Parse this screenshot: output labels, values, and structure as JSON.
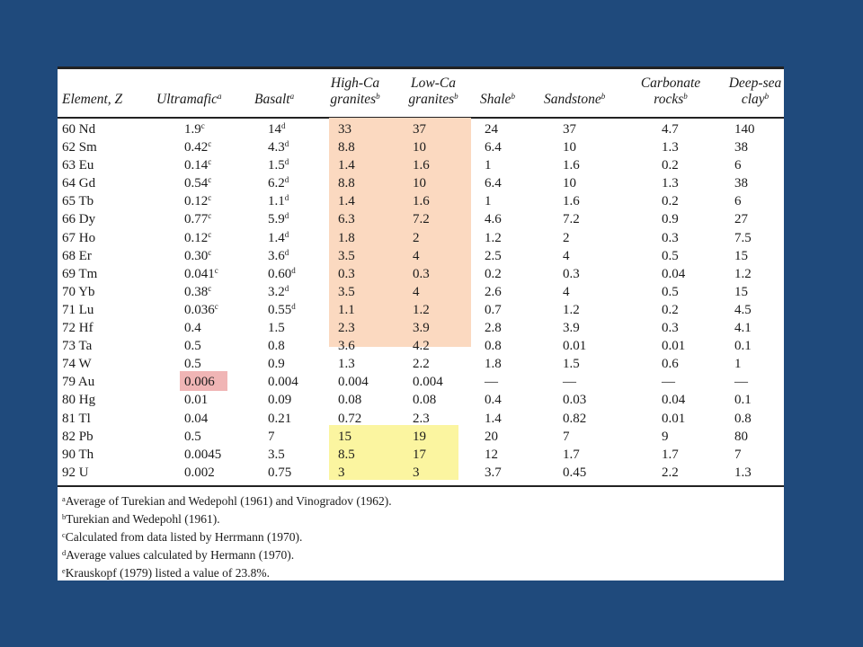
{
  "headers": {
    "element": {
      "text": "Element, Z",
      "sup": ""
    },
    "ultramafic": {
      "text": "Ultramafic",
      "sup": "a"
    },
    "basalt": {
      "text": "Basalt",
      "sup": "a"
    },
    "high_ca_1": {
      "text": "High-Ca",
      "sup": ""
    },
    "high_ca_2": {
      "text": "granites",
      "sup": "b"
    },
    "low_ca_1": {
      "text": "Low-Ca",
      "sup": ""
    },
    "low_ca_2": {
      "text": "granites",
      "sup": "b"
    },
    "shale": {
      "text": "Shale",
      "sup": "b"
    },
    "sandstone": {
      "text": "Sandstone",
      "sup": "b"
    },
    "carbonate_1": {
      "text": "Carbonate",
      "sup": ""
    },
    "carbonate_2": {
      "text": "rocks",
      "sup": "b"
    },
    "deepsea_1": {
      "text": "Deep-sea",
      "sup": ""
    },
    "deepsea_2": {
      "text": "clay",
      "sup": "b"
    }
  },
  "rows": [
    {
      "el": "60 Nd",
      "um": "1.9",
      "um_s": "c",
      "ba": "14",
      "ba_s": "d",
      "hc": "33",
      "lc": "37",
      "sh": "24",
      "ss": "37",
      "cr": "4.7",
      "dc": "140"
    },
    {
      "el": "62 Sm",
      "um": "0.42",
      "um_s": "c",
      "ba": "4.3",
      "ba_s": "d",
      "hc": "8.8",
      "lc": "10",
      "sh": "6.4",
      "ss": "10",
      "cr": "1.3",
      "dc": "38"
    },
    {
      "el": "63 Eu",
      "um": "0.14",
      "um_s": "c",
      "ba": "1.5",
      "ba_s": "d",
      "hc": "1.4",
      "lc": "1.6",
      "sh": "1",
      "ss": "1.6",
      "cr": "0.2",
      "dc": "6"
    },
    {
      "el": "64 Gd",
      "um": "0.54",
      "um_s": "c",
      "ba": "6.2",
      "ba_s": "d",
      "hc": "8.8",
      "lc": "10",
      "sh": "6.4",
      "ss": "10",
      "cr": "1.3",
      "dc": "38"
    },
    {
      "el": "65 Tb",
      "um": "0.12",
      "um_s": "c",
      "ba": "1.1",
      "ba_s": "d",
      "hc": "1.4",
      "lc": "1.6",
      "sh": "1",
      "ss": "1.6",
      "cr": "0.2",
      "dc": "6"
    },
    {
      "el": "66 Dy",
      "um": "0.77",
      "um_s": "c",
      "ba": "5.9",
      "ba_s": "d",
      "hc": "6.3",
      "lc": "7.2",
      "sh": "4.6",
      "ss": "7.2",
      "cr": "0.9",
      "dc": "27"
    },
    {
      "el": "67 Ho",
      "um": "0.12",
      "um_s": "c",
      "ba": "1.4",
      "ba_s": "d",
      "hc": "1.8",
      "lc": "2",
      "sh": "1.2",
      "ss": "2",
      "cr": "0.3",
      "dc": "7.5"
    },
    {
      "el": "68 Er",
      "um": "0.30",
      "um_s": "c",
      "ba": "3.6",
      "ba_s": "d",
      "hc": "3.5",
      "lc": "4",
      "sh": "2.5",
      "ss": "4",
      "cr": "0.5",
      "dc": "15"
    },
    {
      "el": "69 Tm",
      "um": "0.041",
      "um_s": "c",
      "ba": "0.60",
      "ba_s": "d",
      "hc": "0.3",
      "lc": "0.3",
      "sh": "0.2",
      "ss": "0.3",
      "cr": "0.04",
      "dc": "1.2"
    },
    {
      "el": "70 Yb",
      "um": "0.38",
      "um_s": "c",
      "ba": "3.2",
      "ba_s": "d",
      "hc": "3.5",
      "lc": "4",
      "sh": "2.6",
      "ss": "4",
      "cr": "0.5",
      "dc": "15"
    },
    {
      "el": "71 Lu",
      "um": "0.036",
      "um_s": "c",
      "ba": "0.55",
      "ba_s": "d",
      "hc": "1.1",
      "lc": "1.2",
      "sh": "0.7",
      "ss": "1.2",
      "cr": "0.2",
      "dc": "4.5"
    },
    {
      "el": "72 Hf",
      "um": "0.4",
      "um_s": "",
      "ba": "1.5",
      "ba_s": "",
      "hc": "2.3",
      "lc": "3.9",
      "sh": "2.8",
      "ss": "3.9",
      "cr": "0.3",
      "dc": "4.1"
    },
    {
      "el": "73 Ta",
      "um": "0.5",
      "um_s": "",
      "ba": "0.8",
      "ba_s": "",
      "hc": "3.6",
      "lc": "4.2",
      "sh": "0.8",
      "ss": "0.01",
      "cr": "0.01",
      "dc": "0.1"
    },
    {
      "el": "74 W",
      "um": "0.5",
      "um_s": "",
      "ba": "0.9",
      "ba_s": "",
      "hc": "1.3",
      "lc": "2.2",
      "sh": "1.8",
      "ss": "1.5",
      "cr": "0.6",
      "dc": "1"
    },
    {
      "el": "79 Au",
      "um": "0.006",
      "um_s": "",
      "ba": "0.004",
      "ba_s": "",
      "hc": "0.004",
      "lc": "0.004",
      "sh": "—",
      "ss": "—",
      "cr": "—",
      "dc": "—"
    },
    {
      "el": "80 Hg",
      "um": "0.01",
      "um_s": "",
      "ba": "0.09",
      "ba_s": "",
      "hc": "0.08",
      "lc": "0.08",
      "sh": "0.4",
      "ss": "0.03",
      "cr": "0.04",
      "dc": "0.1"
    },
    {
      "el": "81 Tl",
      "um": "0.04",
      "um_s": "",
      "ba": "0.21",
      "ba_s": "",
      "hc": "0.72",
      "lc": "2.3",
      "sh": "1.4",
      "ss": "0.82",
      "cr": "0.01",
      "dc": "0.8"
    },
    {
      "el": "82 Pb",
      "um": "0.5",
      "um_s": "",
      "ba": "7",
      "ba_s": "",
      "hc": "15",
      "lc": "19",
      "sh": "20",
      "ss": "7",
      "cr": "9",
      "dc": "80"
    },
    {
      "el": "90 Th",
      "um": "0.0045",
      "um_s": "",
      "ba": "3.5",
      "ba_s": "",
      "hc": "8.5",
      "lc": "17",
      "sh": "12",
      "ss": "1.7",
      "cr": "1.7",
      "dc": "7"
    },
    {
      "el": "92 U",
      "um": "0.002",
      "um_s": "",
      "ba": "0.75",
      "ba_s": "",
      "hc": "3",
      "lc": "3",
      "sh": "3.7",
      "ss": "0.45",
      "cr": "2.2",
      "dc": "1.3"
    }
  ],
  "footnotes": [
    {
      "mark": "a",
      "text": "Average of Turekian and Wedepohl (1961) and Vinogradov (1962)."
    },
    {
      "mark": "b",
      "text": "Turekian and Wedepohl (1961)."
    },
    {
      "mark": "c",
      "text": "Calculated from data listed by Herrmann (1970)."
    },
    {
      "mark": "d",
      "text": "Average values calculated by Hermann (1970)."
    },
    {
      "mark": "e",
      "text": "Krauskopf (1979) listed a value of 23.8%."
    }
  ],
  "highlight_colors": {
    "orange": "#fbd9c0",
    "yellow": "#fbf5a0",
    "red": "#f0b5b5"
  }
}
